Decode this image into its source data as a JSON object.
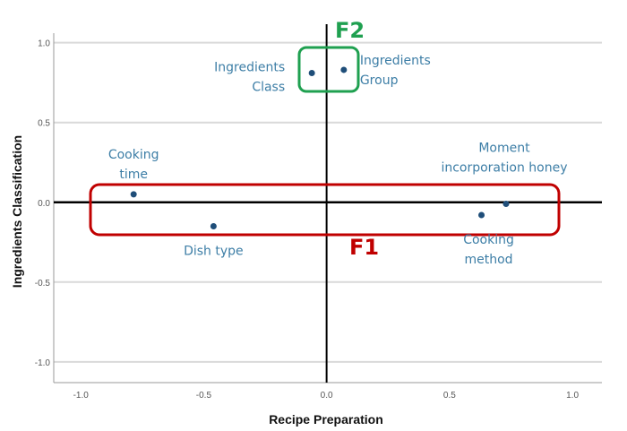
{
  "chart_data": {
    "type": "scatter",
    "title": "",
    "xlabel": "Recipe Preparation",
    "ylabel": "Ingredients Classification",
    "xlim": [
      -1.11,
      1.12
    ],
    "ylim": [
      -1.13,
      1.06
    ],
    "xticks": [
      "-1.0",
      "-0.5",
      "0.0",
      "0.5",
      "1.0"
    ],
    "yticks": [
      "1.0",
      "0.5",
      "0.0",
      "-0.5",
      "-1.0"
    ],
    "grid": "horizontal",
    "points": [
      {
        "label": [
          "Cooking",
          "time"
        ],
        "x": -0.785,
        "y": 0.05
      },
      {
        "label": [
          "Dish type"
        ],
        "x": -0.46,
        "y": -0.15
      },
      {
        "label": [
          "Ingredients",
          "Class"
        ],
        "x": -0.06,
        "y": 0.81
      },
      {
        "label": [
          "Ingredients",
          "Group"
        ],
        "x": 0.07,
        "y": 0.83
      },
      {
        "label": [
          "Cooking",
          "method"
        ],
        "x": 0.63,
        "y": -0.08
      },
      {
        "label": [
          "Moment",
          "incorporation honey"
        ],
        "x": 0.73,
        "y": -0.01
      }
    ],
    "annotations": [
      {
        "text": "F1",
        "color": "#c00000"
      },
      {
        "text": "F2",
        "color": "#1fa050"
      }
    ],
    "colors": {
      "point": "#1f4e79",
      "label": "#3d7ea6",
      "grid": "#d9d9d9"
    }
  }
}
